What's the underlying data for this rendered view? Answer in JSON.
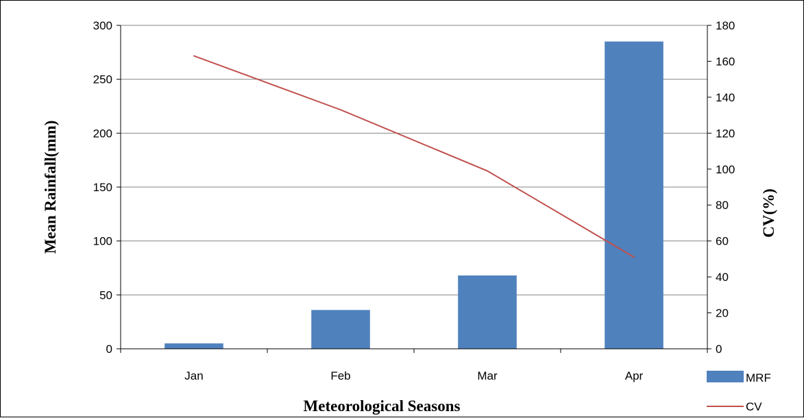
{
  "chart_data": {
    "type": "bar+line",
    "categories": [
      "Jan",
      "Feb",
      "Mar",
      "Apr"
    ],
    "series": [
      {
        "name": "MRF",
        "type": "bar",
        "axis": "left",
        "values": [
          5,
          36,
          68,
          285
        ],
        "color": "#4f81bd"
      },
      {
        "name": "CV",
        "type": "line",
        "axis": "right",
        "values": [
          163,
          133,
          99,
          51
        ],
        "color": "#c0504d"
      }
    ],
    "xlabel": "Meteorological Seasons",
    "ylabel": "Mean Rainfall(mm)",
    "y2label": "CV(%)",
    "ylim": [
      0,
      300
    ],
    "y2lim": [
      0,
      180
    ],
    "yticks": [
      "0",
      "50",
      "100",
      "150",
      "200",
      "250",
      "300"
    ],
    "y2ticks": [
      "0",
      "20",
      "40",
      "60",
      "80",
      "100",
      "120",
      "140",
      "160",
      "180"
    ],
    "grid": true,
    "legend_position": "bottom-right"
  }
}
